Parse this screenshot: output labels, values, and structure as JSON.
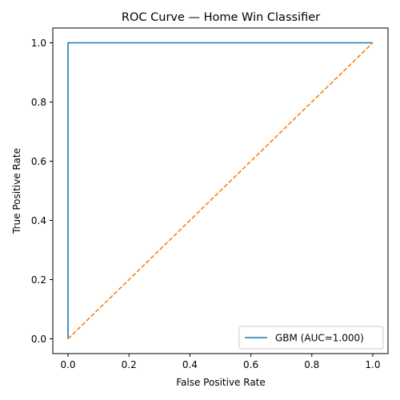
{
  "chart_data": {
    "type": "line",
    "title": "ROC Curve — Home Win Classifier",
    "xlabel": "False Positive Rate",
    "ylabel": "True Positive Rate",
    "xlim": [
      -0.05,
      1.05
    ],
    "ylim": [
      -0.05,
      1.05
    ],
    "xticks": [
      "0.0",
      "0.2",
      "0.4",
      "0.6",
      "0.8",
      "1.0"
    ],
    "yticks": [
      "0.0",
      "0.2",
      "0.4",
      "0.6",
      "0.8",
      "1.0"
    ],
    "grid": false,
    "legend_position": "lower-right",
    "series": [
      {
        "name": "GBM (AUC=1.000)",
        "color": "#1f77b4",
        "style": "solid",
        "x": [
          0.0,
          0.0,
          1.0
        ],
        "y": [
          0.0,
          1.0,
          1.0
        ]
      },
      {
        "color": "#ff7f0e",
        "style": "dashed",
        "x": [
          0.0,
          1.0
        ],
        "y": [
          0.0,
          1.0
        ]
      }
    ]
  }
}
